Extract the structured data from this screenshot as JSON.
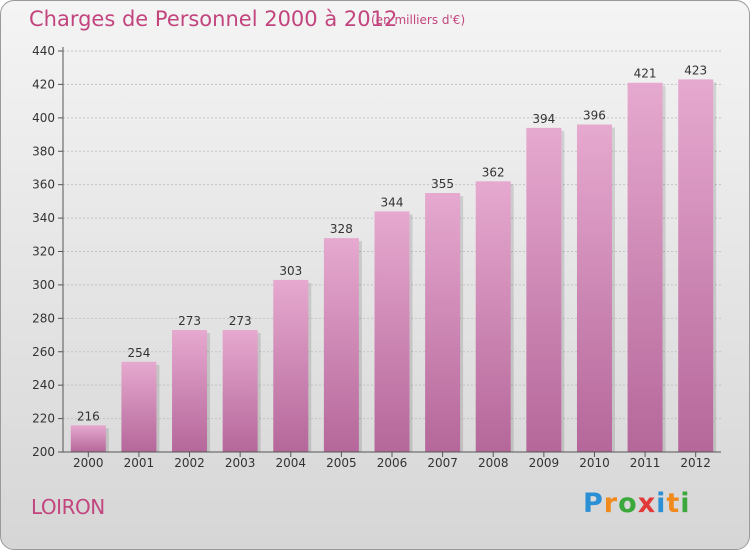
{
  "chart_data": {
    "type": "bar",
    "title": "Charges de Personnel 2000 à 2012",
    "subtitle": "(en milliers d'€)",
    "categories": [
      "2000",
      "2001",
      "2002",
      "2003",
      "2004",
      "2005",
      "2006",
      "2007",
      "2008",
      "2009",
      "2010",
      "2011",
      "2012"
    ],
    "values": [
      216,
      254,
      273,
      273,
      303,
      328,
      344,
      355,
      362,
      394,
      396,
      421,
      423
    ],
    "ylim": [
      200,
      440
    ],
    "yticks": [
      200,
      220,
      240,
      260,
      280,
      300,
      320,
      340,
      360,
      380,
      400,
      420,
      440
    ],
    "grid": true,
    "xlabel": "",
    "ylabel": ""
  },
  "commune": "LOIRON",
  "logo": {
    "text": "Proxiti",
    "letters": [
      {
        "ch": "P",
        "color": "#2b8fd6"
      },
      {
        "ch": "r",
        "color": "#f08a1c"
      },
      {
        "ch": "o",
        "color": "#3aa83a"
      },
      {
        "ch": "x",
        "color": "#e23a3a"
      },
      {
        "ch": "i",
        "color": "#2b8fd6"
      },
      {
        "ch": "t",
        "color": "#f08a1c"
      },
      {
        "ch": "i",
        "color": "#3aa83a"
      }
    ]
  },
  "colors": {
    "bar_top": "#e6a9cf",
    "bar_bottom": "#b5679a",
    "accent": "#c2457e",
    "axis": "#555555"
  }
}
